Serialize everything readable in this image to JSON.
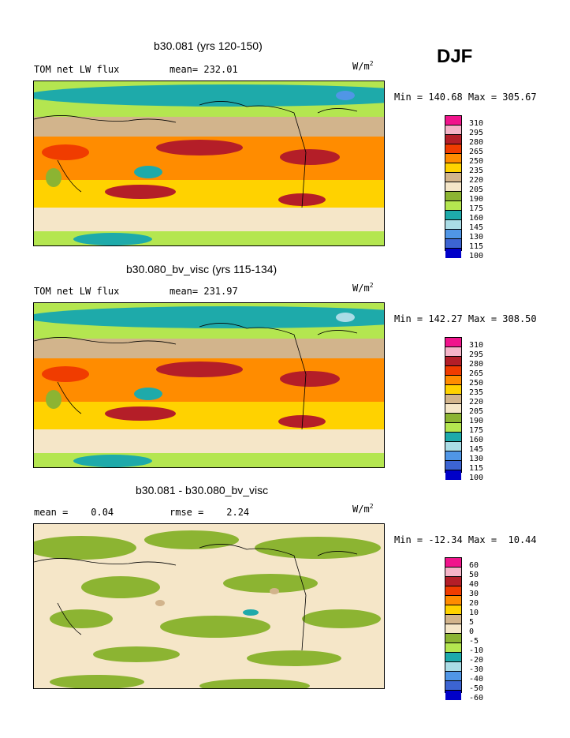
{
  "season": "DJF",
  "colors": {
    "scale": [
      "#f0148c",
      "#f5b4c8",
      "#b41e28",
      "#f03c00",
      "#ff8c00",
      "#ffd200",
      "#d2b48c",
      "#f5e6c8",
      "#8cb432",
      "#b4e650",
      "#1eaaaa",
      "#aadce6",
      "#5096e6",
      "#3c64d2",
      "#0000c8",
      "#8c78dc"
    ]
  },
  "panels": [
    {
      "title": "b30.081 (yrs 120-150)",
      "left_label": "TOM net LW flux",
      "mid_label": "mean= 232.01",
      "units_base": "W/m",
      "units_exp": "2",
      "minmax": "Min = 140.68 Max = 305.67",
      "levels": [
        "310",
        "295",
        "280",
        "265",
        "250",
        "235",
        "220",
        "205",
        "190",
        "175",
        "160",
        "145",
        "130",
        "115",
        "100"
      ]
    },
    {
      "title": "b30.080_bv_visc (yrs 115-134)",
      "left_label": "TOM net LW flux",
      "mid_label": "mean= 231.97",
      "units_base": "W/m",
      "units_exp": "2",
      "minmax": "Min = 142.27 Max = 308.50",
      "levels": [
        "310",
        "295",
        "280",
        "265",
        "250",
        "235",
        "220",
        "205",
        "190",
        "175",
        "160",
        "145",
        "130",
        "115",
        "100"
      ]
    },
    {
      "title": "b30.081 - b30.080_bv_visc",
      "left_label": "mean =    0.04",
      "mid_label": "rmse =    2.24",
      "units_base": "W/m",
      "units_exp": "2",
      "minmax": "Min = -12.34 Max =  10.44",
      "levels": [
        "60",
        "50",
        "40",
        "30",
        "20",
        "10",
        "5",
        "0",
        "-5",
        "-10",
        "-20",
        "-30",
        "-40",
        "-50",
        "-60"
      ]
    }
  ]
}
